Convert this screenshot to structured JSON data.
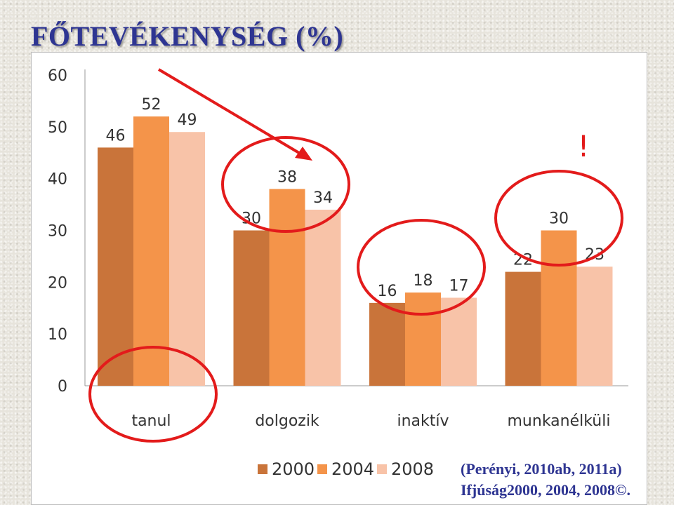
{
  "title": "FŐTEVÉKENYSÉG (%)",
  "source": {
    "line1": "(Perényi, 2010ab, 2011a)",
    "line2": "Ifjúság2000, 2004, 2008©."
  },
  "annotation": {
    "exclamation": "!"
  },
  "colors": {
    "2000": "#c9743a",
    "2004": "#f4944a",
    "2008": "#f8c3a8",
    "circle": "#e31b1b",
    "arrow": "#e31b1b"
  },
  "chart_data": {
    "type": "bar",
    "categories": [
      "tanul",
      "dolgozik",
      "inaktív",
      "munkanélküli"
    ],
    "series": [
      {
        "name": "2000",
        "values": [
          46,
          30,
          16,
          22
        ]
      },
      {
        "name": "2004",
        "values": [
          52,
          38,
          18,
          30
        ]
      },
      {
        "name": "2008",
        "values": [
          49,
          34,
          17,
          23
        ]
      }
    ],
    "ylim": [
      0,
      60
    ],
    "yticks": [
      0,
      10,
      20,
      30,
      40,
      50,
      60
    ],
    "grid": false,
    "legend": "bottom",
    "data_labels": true,
    "highlights": [
      "tanul",
      "dolgozik",
      "inaktív",
      "munkanélküli"
    ]
  }
}
